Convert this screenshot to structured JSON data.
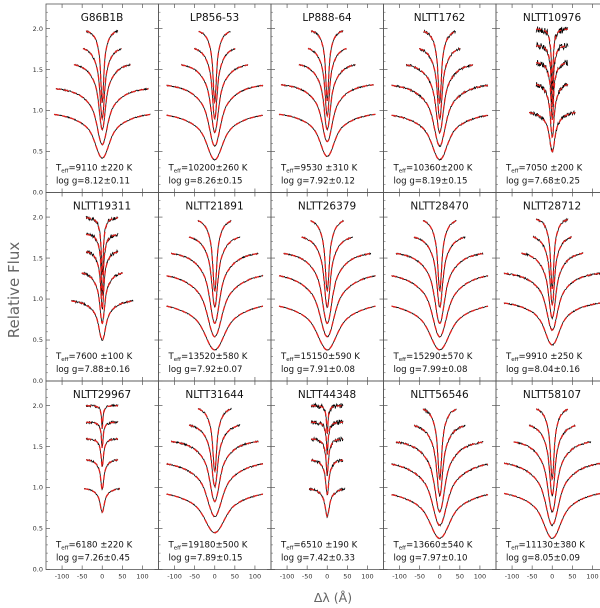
{
  "chart_data": {
    "type": "line",
    "title": "",
    "xlabel": "Δλ (Å)",
    "ylabel": "Relative Flux",
    "xlim": [
      -140,
      140
    ],
    "ylim": [
      0,
      2.3
    ],
    "xticks": [
      -100,
      -50,
      0,
      50,
      100
    ],
    "xtick_labels": [
      "-100",
      "-50",
      "0",
      "50",
      "100"
    ],
    "yticks": [
      0.0,
      0.5,
      1.0,
      1.5,
      2.0
    ],
    "ytick_labels": [
      "0.0",
      "0.5",
      "1.0",
      "1.5",
      "2.0"
    ],
    "layout": "3 rows x 5 columns, shared axes",
    "series_styles": [
      {
        "role": "observed",
        "line": "solid",
        "color": "#000000"
      },
      {
        "role": "model fit",
        "line": "dashed",
        "color": "#e0201c"
      }
    ],
    "panels": [
      {
        "name": "G86B1B",
        "teff": "T",
        "teff_sub": "eff",
        "teff_value": "=9110 ±220 K",
        "logg": "log g=8.12±0.11",
        "offsets": [
          1.0,
          1.3,
          1.6,
          1.8,
          2.0
        ],
        "depths": [
          0.58,
          0.55,
          0.52,
          0.5,
          0.45
        ],
        "widths": [
          50,
          36,
          22,
          15,
          10
        ],
        "noise": 0.006,
        "edge_lift": [
          0.0,
          0.0,
          0.0,
          0.0,
          0.0
        ]
      },
      {
        "name": "LP856-53",
        "teff": "T",
        "teff_sub": "eff",
        "teff_value": "=10200±260 K",
        "logg": "log g=8.26±0.15",
        "offsets": [
          1.0,
          1.35,
          1.6,
          1.8,
          2.0
        ],
        "depths": [
          0.6,
          0.58,
          0.54,
          0.5,
          0.45
        ],
        "widths": [
          55,
          40,
          26,
          16,
          11
        ],
        "noise": 0.005,
        "edge_lift": [
          0.0,
          0.0,
          0.0,
          0.0,
          0.0
        ]
      },
      {
        "name": "LP888-64",
        "teff": "T",
        "teff_sub": "eff",
        "teff_value": "=9530 ±310 K",
        "logg": "log g=7.92±0.12",
        "offsets": [
          1.0,
          1.35,
          1.6,
          1.8,
          2.0
        ],
        "depths": [
          0.56,
          0.54,
          0.52,
          0.48,
          0.44
        ],
        "widths": [
          50,
          36,
          22,
          15,
          10
        ],
        "noise": 0.006,
        "edge_lift": [
          0.0,
          0.0,
          0.0,
          0.0,
          0.0
        ]
      },
      {
        "name": "NLTT1762",
        "teff": "T",
        "teff_sub": "eff",
        "teff_value": "=10360±200 K",
        "logg": "log g=8.19±0.15",
        "offsets": [
          1.0,
          1.35,
          1.6,
          1.8,
          2.0
        ],
        "depths": [
          0.6,
          0.58,
          0.54,
          0.5,
          0.45
        ],
        "widths": [
          55,
          40,
          26,
          16,
          11
        ],
        "noise": 0.009,
        "edge_lift": [
          0.0,
          0.0,
          0.0,
          0.0,
          0.0
        ]
      },
      {
        "name": "NLTT10976",
        "teff": "T",
        "teff_sub": "eff",
        "teff_value": "=7050 ±200 K",
        "logg": "log g=7.68±0.25",
        "offsets": [
          1.0,
          1.35,
          1.6,
          1.8,
          2.0
        ],
        "depths": [
          0.5,
          0.5,
          0.45,
          0.42,
          0.36
        ],
        "widths": [
          18,
          12,
          8,
          6,
          5
        ],
        "noise": 0.022,
        "edge_lift": [
          0.0,
          0.0,
          0.0,
          0.0,
          0.0
        ]
      },
      {
        "name": "NLTT19311",
        "teff": "T",
        "teff_sub": "eff",
        "teff_value": "=7600 ±100 K",
        "logg": "log g=7.88±0.16",
        "offsets": [
          1.0,
          1.35,
          1.6,
          1.8,
          2.0
        ],
        "depths": [
          0.5,
          0.48,
          0.45,
          0.42,
          0.36
        ],
        "widths": [
          24,
          16,
          10,
          7,
          6
        ],
        "noise": 0.012,
        "edge_lift": [
          0.0,
          0.0,
          0.0,
          0.0,
          0.0
        ]
      },
      {
        "name": "NLTT21891",
        "teff": "T",
        "teff_sub": "eff",
        "teff_value": "=13520±580 K",
        "logg": "log g=7.92±0.07",
        "offsets": [
          1.0,
          1.35,
          1.6,
          1.8,
          2.0
        ],
        "depths": [
          0.62,
          0.6,
          0.56,
          0.5,
          0.45
        ],
        "widths": [
          70,
          50,
          34,
          20,
          13
        ],
        "noise": 0.005,
        "edge_lift": [
          0.0,
          0.0,
          0.0,
          0.0,
          0.0
        ]
      },
      {
        "name": "NLTT26379",
        "teff": "T",
        "teff_sub": "eff",
        "teff_value": "=15150±590 K",
        "logg": "log g=7.91±0.08",
        "offsets": [
          1.0,
          1.35,
          1.6,
          1.8,
          2.0
        ],
        "depths": [
          0.62,
          0.6,
          0.56,
          0.5,
          0.45
        ],
        "widths": [
          70,
          50,
          34,
          20,
          13
        ],
        "noise": 0.005,
        "edge_lift": [
          0.0,
          0.0,
          0.0,
          0.0,
          0.0
        ]
      },
      {
        "name": "NLTT28470",
        "teff": "T",
        "teff_sub": "eff",
        "teff_value": "=15290±570 K",
        "logg": "log g=7.99±0.08",
        "offsets": [
          1.0,
          1.35,
          1.6,
          1.8,
          2.0
        ],
        "depths": [
          0.62,
          0.6,
          0.56,
          0.5,
          0.45
        ],
        "widths": [
          70,
          50,
          34,
          20,
          13
        ],
        "noise": 0.005,
        "edge_lift": [
          0.0,
          0.0,
          0.0,
          0.0,
          0.0
        ]
      },
      {
        "name": "NLTT28712",
        "teff": "T",
        "teff_sub": "eff",
        "teff_value": "=9910 ±250 K",
        "logg": "log g=8.04±0.16",
        "offsets": [
          1.0,
          1.35,
          1.6,
          1.8,
          2.0
        ],
        "depths": [
          0.56,
          0.54,
          0.52,
          0.48,
          0.44
        ],
        "widths": [
          52,
          38,
          24,
          15,
          10
        ],
        "noise": 0.007,
        "edge_lift": [
          0.0,
          0.0,
          0.0,
          0.0,
          0.0
        ]
      },
      {
        "name": "NLTT29967",
        "teff": "T",
        "teff_sub": "eff",
        "teff_value": "=6180 ±220 K",
        "logg": "log g=7.26±0.45",
        "offsets": [
          1.0,
          1.35,
          1.6,
          1.8,
          2.0
        ],
        "depths": [
          0.3,
          0.28,
          0.22,
          0.18,
          0.14
        ],
        "widths": [
          14,
          10,
          7,
          5,
          4
        ],
        "noise": 0.008,
        "edge_lift": [
          0.0,
          0.0,
          0.0,
          0.0,
          0.0
        ]
      },
      {
        "name": "NLTT31644",
        "teff": "T",
        "teff_sub": "eff",
        "teff_value": "=19180±500 K",
        "logg": "log g=7.89±0.15",
        "offsets": [
          1.0,
          1.35,
          1.6,
          1.8,
          2.0
        ],
        "depths": [
          0.55,
          0.52,
          0.48,
          0.44,
          0.4
        ],
        "widths": [
          72,
          52,
          34,
          20,
          13
        ],
        "noise": 0.006,
        "edge_lift": [
          0.0,
          0.0,
          0.0,
          0.0,
          0.0
        ]
      },
      {
        "name": "NLTT44348",
        "teff": "T",
        "teff_sub": "eff",
        "teff_value": "=6510 ±190 K",
        "logg": "log g=7.42±0.33",
        "offsets": [
          1.0,
          1.35,
          1.6,
          1.8,
          2.0
        ],
        "depths": [
          0.35,
          0.32,
          0.28,
          0.22,
          0.18
        ],
        "widths": [
          14,
          10,
          7,
          5,
          4
        ],
        "noise": 0.016,
        "edge_lift": [
          0.0,
          0.0,
          0.0,
          0.0,
          0.0
        ]
      },
      {
        "name": "NLTT56546",
        "teff": "T",
        "teff_sub": "eff",
        "teff_value": "=13660±540 K",
        "logg": "log g=7.97±0.10",
        "offsets": [
          1.0,
          1.35,
          1.6,
          1.8,
          2.0
        ],
        "depths": [
          0.62,
          0.6,
          0.56,
          0.5,
          0.45
        ],
        "widths": [
          70,
          50,
          34,
          20,
          13
        ],
        "noise": 0.007,
        "edge_lift": [
          0.0,
          0.0,
          0.0,
          0.0,
          0.0
        ]
      },
      {
        "name": "NLTT58107",
        "teff": "T",
        "teff_sub": "eff",
        "teff_value": "=11130±380 K",
        "logg": "log g=8.05±0.09",
        "offsets": [
          1.0,
          1.35,
          1.6,
          1.8,
          2.0
        ],
        "depths": [
          0.62,
          0.6,
          0.56,
          0.5,
          0.45
        ],
        "widths": [
          62,
          45,
          30,
          18,
          12
        ],
        "noise": 0.006,
        "edge_lift": [
          0.0,
          0.0,
          0.0,
          0.0,
          0.0
        ]
      }
    ]
  },
  "colors": {
    "observed": "#000000",
    "model": "#e0201c",
    "frame": "#555555",
    "label_gray": "#666666"
  }
}
